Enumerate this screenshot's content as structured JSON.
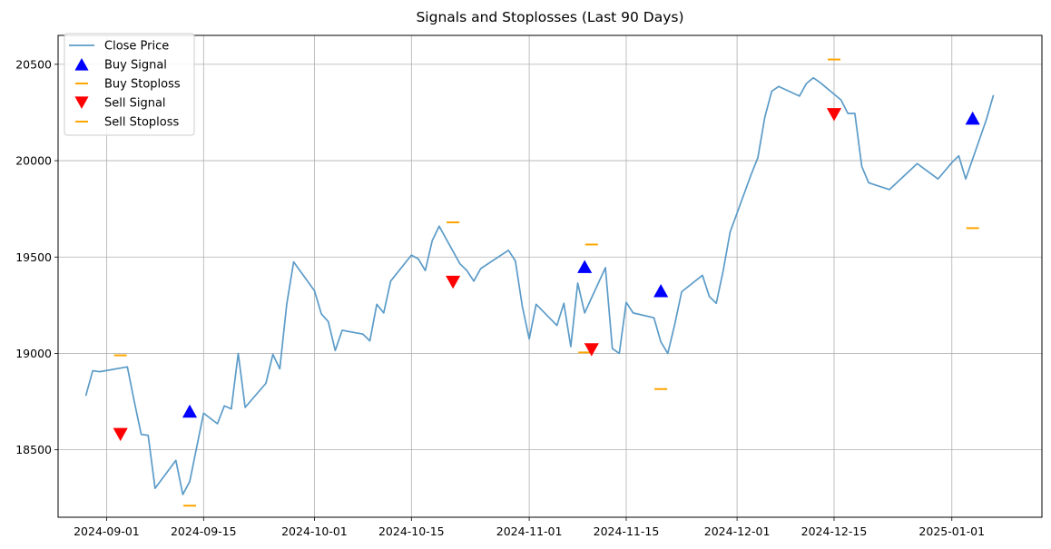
{
  "chart_data": {
    "type": "line",
    "title": "Signals and Stoplosses (Last 90 Days)",
    "xlabel": "",
    "ylabel": "",
    "grid": true,
    "legend_position": "top-left",
    "xlim": [
      "2024-08-25",
      "2025-01-14"
    ],
    "ylim": [
      18150,
      20650
    ],
    "x_ticks": [
      "2024-09-01",
      "2024-09-15",
      "2024-10-01",
      "2024-10-15",
      "2024-11-01",
      "2024-11-15",
      "2024-12-01",
      "2024-12-15",
      "2025-01-01"
    ],
    "y_ticks": [
      18500,
      19000,
      19500,
      20000,
      20500
    ],
    "colors": {
      "close": "#5b9bc8",
      "buy_signal": "#0000ff",
      "sell_signal": "#ff0000",
      "stoploss": "#ffa500",
      "grid": "#b0b0b0"
    },
    "legend": [
      {
        "label": "Close Price",
        "kind": "line",
        "color": "#5b9bc8"
      },
      {
        "label": "Buy Signal",
        "kind": "triangle-up",
        "color": "#0000ff"
      },
      {
        "label": "Buy Stoploss",
        "kind": "dash",
        "color": "#ffa500"
      },
      {
        "label": "Sell Signal",
        "kind": "triangle-down",
        "color": "#ff0000"
      },
      {
        "label": "Sell Stoploss",
        "kind": "dash",
        "color": "#ffa500"
      }
    ],
    "series": [
      {
        "name": "Close Price",
        "points": [
          [
            "2024-08-29",
            18780
          ],
          [
            "2024-08-30",
            18910
          ],
          [
            "2024-08-31",
            18905
          ],
          [
            "2024-09-04",
            18930
          ],
          [
            "2024-09-05",
            18750
          ],
          [
            "2024-09-06",
            18580
          ],
          [
            "2024-09-07",
            18575
          ],
          [
            "2024-09-08",
            18300
          ],
          [
            "2024-09-11",
            18445
          ],
          [
            "2024-09-12",
            18268
          ],
          [
            "2024-09-13",
            18335
          ],
          [
            "2024-09-15",
            18690
          ],
          [
            "2024-09-17",
            18635
          ],
          [
            "2024-09-18",
            18728
          ],
          [
            "2024-09-19",
            18712
          ],
          [
            "2024-09-20",
            19000
          ],
          [
            "2024-09-21",
            18720
          ],
          [
            "2024-09-24",
            18845
          ],
          [
            "2024-09-25",
            18995
          ],
          [
            "2024-09-26",
            18920
          ],
          [
            "2024-09-27",
            19255
          ],
          [
            "2024-09-28",
            19475
          ],
          [
            "2024-10-01",
            19325
          ],
          [
            "2024-10-02",
            19205
          ],
          [
            "2024-10-03",
            19165
          ],
          [
            "2024-10-04",
            19015
          ],
          [
            "2024-10-05",
            19120
          ],
          [
            "2024-10-08",
            19100
          ],
          [
            "2024-10-09",
            19065
          ],
          [
            "2024-10-10",
            19255
          ],
          [
            "2024-10-11",
            19210
          ],
          [
            "2024-10-12",
            19375
          ],
          [
            "2024-10-15",
            19510
          ],
          [
            "2024-10-16",
            19490
          ],
          [
            "2024-10-17",
            19430
          ],
          [
            "2024-10-18",
            19585
          ],
          [
            "2024-10-19",
            19660
          ],
          [
            "2024-10-22",
            19465
          ],
          [
            "2024-10-23",
            19430
          ],
          [
            "2024-10-24",
            19375
          ],
          [
            "2024-10-25",
            19440
          ],
          [
            "2024-10-29",
            19535
          ],
          [
            "2024-10-30",
            19480
          ],
          [
            "2024-10-31",
            19245
          ],
          [
            "2024-11-01",
            19075
          ],
          [
            "2024-11-02",
            19255
          ],
          [
            "2024-11-05",
            19145
          ],
          [
            "2024-11-06",
            19260
          ],
          [
            "2024-11-07",
            19035
          ],
          [
            "2024-11-08",
            19365
          ],
          [
            "2024-11-09",
            19210
          ],
          [
            "2024-11-12",
            19445
          ],
          [
            "2024-11-13",
            19025
          ],
          [
            "2024-11-14",
            19000
          ],
          [
            "2024-11-15",
            19265
          ],
          [
            "2024-11-16",
            19210
          ],
          [
            "2024-11-19",
            19185
          ],
          [
            "2024-11-20",
            19060
          ],
          [
            "2024-11-21",
            19000
          ],
          [
            "2024-11-22",
            19150
          ],
          [
            "2024-11-23",
            19320
          ],
          [
            "2024-11-26",
            19405
          ],
          [
            "2024-11-27",
            19295
          ],
          [
            "2024-11-28",
            19260
          ],
          [
            "2024-11-29",
            19430
          ],
          [
            "2024-11-30",
            19630
          ],
          [
            "2024-12-03",
            19925
          ],
          [
            "2024-12-04",
            20015
          ],
          [
            "2024-12-05",
            20225
          ],
          [
            "2024-12-06",
            20360
          ],
          [
            "2024-12-07",
            20385
          ],
          [
            "2024-12-10",
            20335
          ],
          [
            "2024-12-11",
            20400
          ],
          [
            "2024-12-12",
            20430
          ],
          [
            "2024-12-13",
            20405
          ],
          [
            "2024-12-16",
            20315
          ],
          [
            "2024-12-17",
            20245
          ],
          [
            "2024-12-18",
            20245
          ],
          [
            "2024-12-19",
            19970
          ],
          [
            "2024-12-20",
            19885
          ],
          [
            "2024-12-23",
            19850
          ],
          [
            "2024-12-27",
            19985
          ],
          [
            "2024-12-30",
            19905
          ],
          [
            "2025-01-01",
            19990
          ],
          [
            "2025-01-02",
            20025
          ],
          [
            "2025-01-03",
            19905
          ],
          [
            "2025-01-06",
            20215
          ],
          [
            "2025-01-07",
            20340
          ]
        ]
      }
    ],
    "buy_signals": [
      [
        "2024-09-13",
        18695
      ],
      [
        "2024-11-09",
        19445
      ],
      [
        "2024-11-20",
        19320
      ],
      [
        "2025-01-04",
        20215
      ]
    ],
    "buy_stoplosses": [
      [
        "2024-09-13",
        18210
      ],
      [
        "2024-11-09",
        19005
      ],
      [
        "2024-11-20",
        18815
      ],
      [
        "2025-01-04",
        19650
      ]
    ],
    "sell_signals": [
      [
        "2024-09-03",
        18585
      ],
      [
        "2024-10-21",
        19375
      ],
      [
        "2024-11-10",
        19025
      ],
      [
        "2024-12-15",
        20245
      ]
    ],
    "sell_stoplosses": [
      [
        "2024-09-03",
        18990
      ],
      [
        "2024-10-21",
        19680
      ],
      [
        "2024-11-10",
        19565
      ],
      [
        "2024-12-15",
        20525
      ]
    ]
  }
}
